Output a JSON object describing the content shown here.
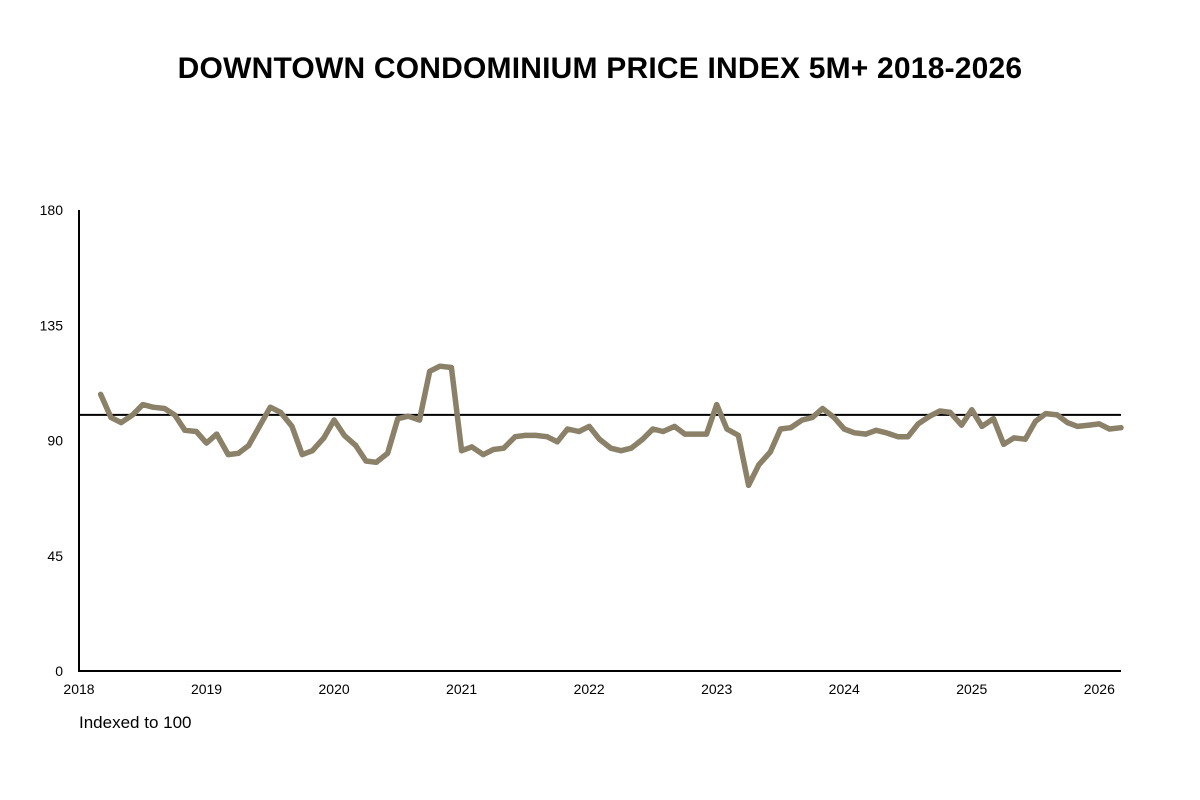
{
  "chart_data": {
    "type": "line",
    "title": "DOWNTOWN CONDOMINIUM PRICE INDEX 5M+ 2018-2026",
    "footnote": "Indexed to 100",
    "ylim": [
      0,
      180
    ],
    "yticks": [
      "0",
      "45",
      "90",
      "135",
      "180"
    ],
    "xlim": [
      2018,
      2026.17
    ],
    "xticks": [
      "2018",
      "2019",
      "2020",
      "2021",
      "2022",
      "2023",
      "2024",
      "2025",
      "2026"
    ],
    "reference_line": 100,
    "grid": false,
    "line_color": "#8b8068",
    "series": [
      {
        "x": [
          2018.17,
          2018.25,
          2018.33,
          2018.42,
          2018.5,
          2018.58,
          2018.67,
          2018.75,
          2018.83,
          2018.92,
          2019.0,
          2019.08,
          2019.17,
          2019.25,
          2019.33,
          2019.42,
          2019.5,
          2019.58,
          2019.67,
          2019.75,
          2019.83,
          2019.92,
          2020.0,
          2020.08,
          2020.17,
          2020.25,
          2020.33,
          2020.42,
          2020.5,
          2020.58,
          2020.67,
          2020.75,
          2020.83,
          2020.92,
          2021.0,
          2021.08,
          2021.17,
          2021.25,
          2021.33,
          2021.42,
          2021.5,
          2021.58,
          2021.67,
          2021.75,
          2021.83,
          2021.92,
          2022.0,
          2022.08,
          2022.17,
          2022.25,
          2022.33,
          2022.42,
          2022.5,
          2022.58,
          2022.67,
          2022.75,
          2022.83,
          2022.92,
          2023.0,
          2023.08,
          2023.17,
          2023.25,
          2023.33,
          2023.42,
          2023.5,
          2023.58,
          2023.67,
          2023.75,
          2023.83,
          2023.92,
          2024.0,
          2024.08,
          2024.17,
          2024.25,
          2024.33,
          2024.42,
          2024.5,
          2024.58,
          2024.67,
          2024.75,
          2024.83,
          2024.92,
          2025.0,
          2025.08,
          2025.17,
          2025.25,
          2025.33,
          2025.42,
          2025.5,
          2025.58,
          2025.67,
          2025.75,
          2025.83,
          2025.92,
          2026.0,
          2026.08,
          2026.17
        ],
        "values": [
          108,
          99,
          97,
          100,
          104,
          103,
          102.5,
          100,
          94,
          93.5,
          89,
          92.5,
          84.5,
          85,
          88,
          96,
          103,
          101,
          95.5,
          84.5,
          86,
          91,
          98,
          92,
          88,
          82,
          81.5,
          85,
          98.5,
          99.5,
          98,
          117,
          119,
          118.5,
          86,
          87.5,
          84.5,
          86.5,
          87,
          91.5,
          92,
          92,
          91.5,
          89.5,
          94.5,
          93.5,
          95.5,
          90.5,
          87,
          86,
          87,
          90.5,
          94.5,
          93.5,
          95.5,
          92.5,
          92.5,
          92.5,
          104,
          94.5,
          92,
          72.5,
          80.5,
          85.5,
          94.5,
          95,
          98,
          99,
          102.5,
          99,
          94.5,
          93,
          92.5,
          94,
          93,
          91.5,
          91.5,
          96.5,
          99.5,
          101.5,
          101,
          96,
          102,
          95.5,
          98.5,
          88.5,
          91,
          90.5,
          97.5,
          100.5,
          100,
          97,
          95.5,
          96,
          96.5,
          94.5,
          95
        ]
      }
    ]
  }
}
